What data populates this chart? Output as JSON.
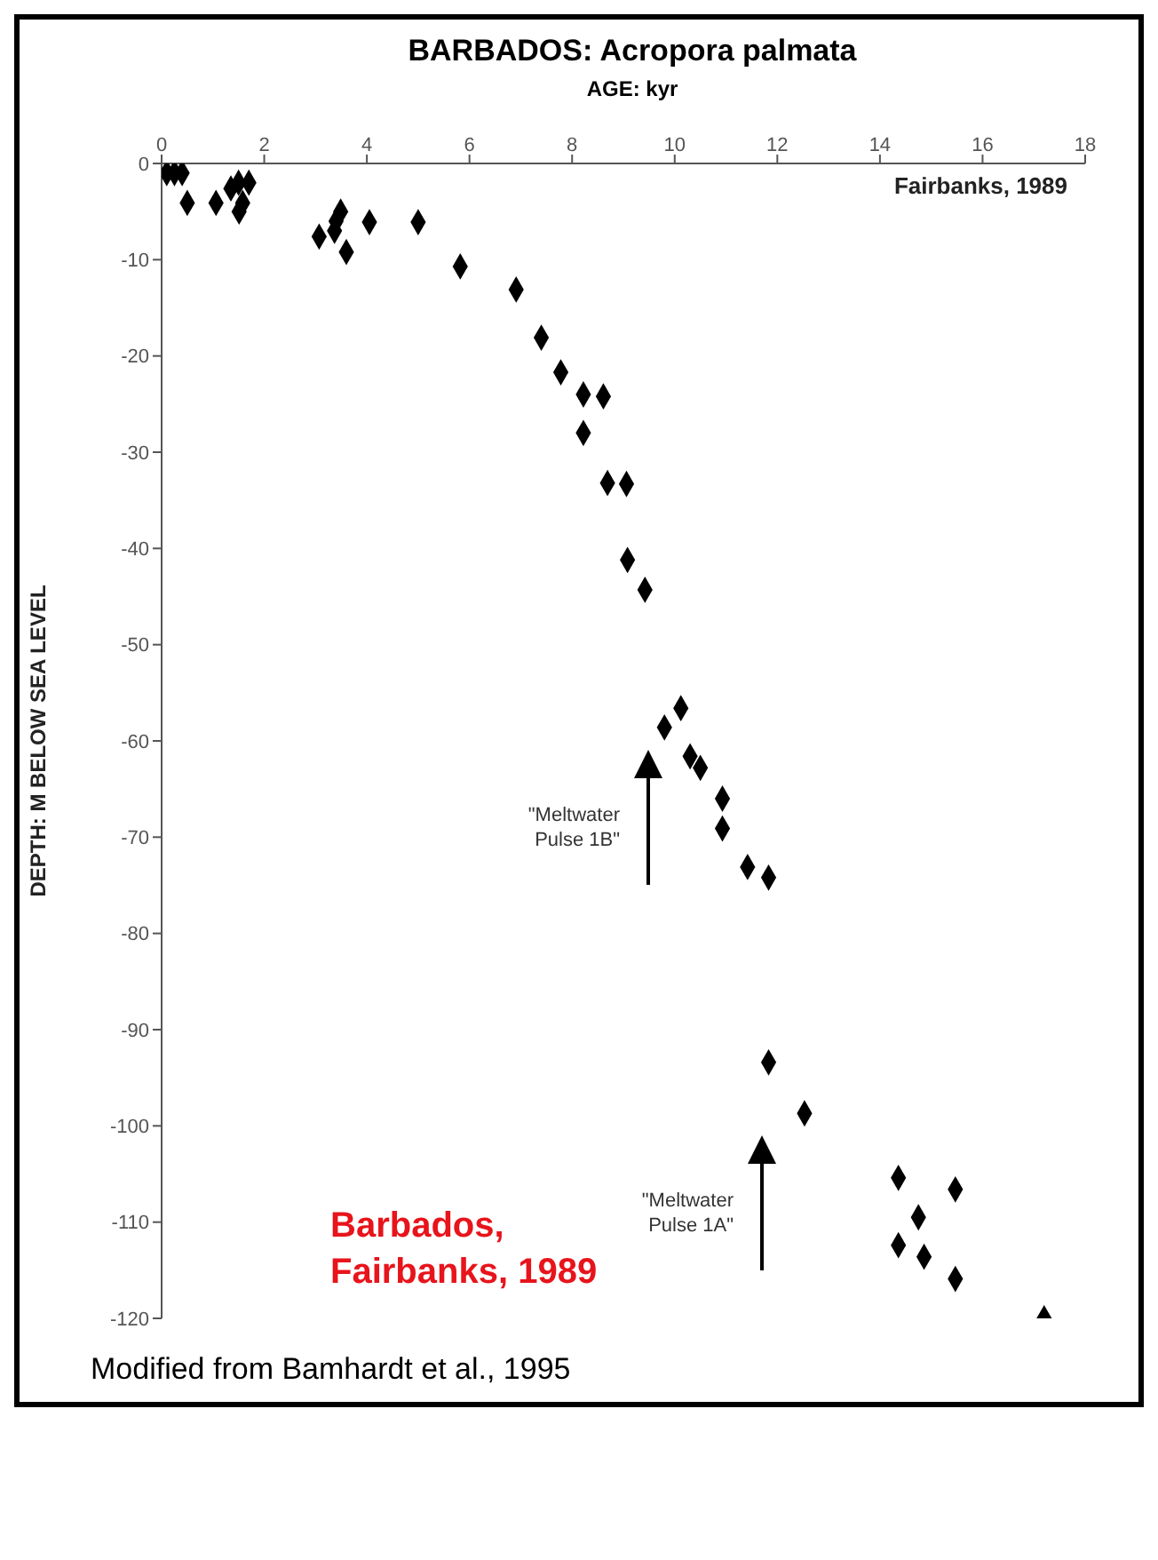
{
  "chart_data": {
    "type": "scatter",
    "title": "BARBADOS: Acropora palmata",
    "xlabel": "AGE: kyr",
    "ylabel": "DEPTH: M BELOW SEA LEVEL",
    "x": [
      0.1,
      0.25,
      0.4,
      0.5,
      1.06,
      1.35,
      1.5,
      1.7,
      1.58,
      1.51,
      3.07,
      3.37,
      3.49,
      3.4,
      3.6,
      4.05,
      5.0,
      5.82,
      6.91,
      7.4,
      7.78,
      8.22,
      8.61,
      8.22,
      8.69,
      9.06,
      9.08,
      9.42,
      10.12,
      9.8,
      10.3,
      10.5,
      10.93,
      10.93,
      11.42,
      11.83,
      11.83,
      12.53,
      14.36,
      15.47,
      14.75,
      14.36,
      14.86,
      15.47,
      17.2
    ],
    "values": [
      -1,
      -1,
      -1,
      -4.1,
      -4.1,
      -2.6,
      -2,
      -2,
      -4.1,
      -5,
      -7.6,
      -7,
      -5,
      -6,
      -9.2,
      -6.1,
      -6.1,
      -10.7,
      -13.1,
      -18.1,
      -21.7,
      -24,
      -24.2,
      -28,
      -33.2,
      -33.3,
      -41.2,
      -44.3,
      -56.6,
      -58.6,
      -61.6,
      -62.8,
      -66,
      -69.1,
      -73.1,
      -74.2,
      -93.4,
      -98.7,
      -105.4,
      -106.6,
      -109.5,
      -112.4,
      -113.6,
      -115.9,
      -120
    ],
    "color": "#000000",
    "marker": "diamond",
    "xlim": [
      0,
      18
    ],
    "xticks": [
      0,
      2,
      4,
      6,
      8,
      10,
      12,
      14,
      16,
      18
    ],
    "ylim": [
      -120,
      0
    ],
    "yticks": [
      -120,
      -110,
      -100,
      -90,
      -80,
      -70,
      -60,
      -50,
      -40,
      -30,
      -20,
      -10,
      0
    ],
    "annotations": [
      "Fairbanks, 1989",
      "Barbados,\nFairbanks, 1989",
      "Modified from Bamhardt et al., 1995",
      "\"Meltwater\nPulse 1B\"",
      "\"Meltwater\nPulse 1A\""
    ]
  }
}
